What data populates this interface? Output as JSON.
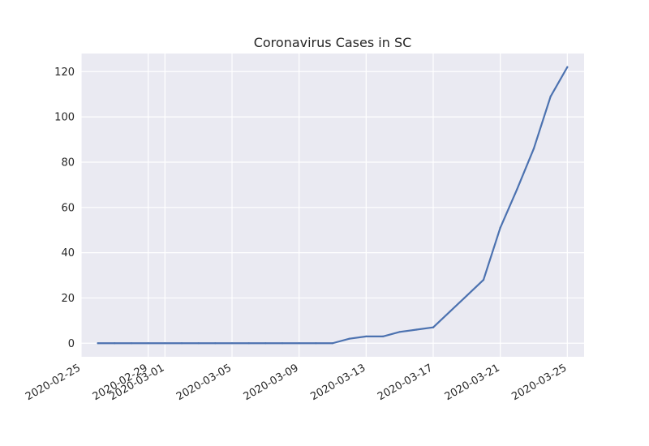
{
  "chart_data": {
    "type": "line",
    "title": "Coronavirus Cases in SC",
    "xlabel": "",
    "ylabel": "",
    "grid": true,
    "xlim": [
      "2020-02-25",
      "2020-03-26"
    ],
    "ylim": [
      -6,
      128
    ],
    "x_ticks": [
      "2020-02-25",
      "2020-02-29",
      "2020-03-01",
      "2020-03-05",
      "2020-03-09",
      "2020-03-13",
      "2020-03-17",
      "2020-03-21",
      "2020-03-25"
    ],
    "y_ticks": [
      0,
      20,
      40,
      60,
      80,
      100,
      120
    ],
    "colors": {
      "background": "#EAEAF2",
      "grid": "#FFFFFF",
      "line": "#4C72B0",
      "text": "#262626"
    },
    "series": [
      {
        "x": [
          "2020-02-26",
          "2020-02-27",
          "2020-02-28",
          "2020-02-29",
          "2020-03-01",
          "2020-03-02",
          "2020-03-03",
          "2020-03-04",
          "2020-03-05",
          "2020-03-06",
          "2020-03-07",
          "2020-03-08",
          "2020-03-09",
          "2020-03-10",
          "2020-03-11",
          "2020-03-12",
          "2020-03-13",
          "2020-03-14",
          "2020-03-15",
          "2020-03-16",
          "2020-03-17",
          "2020-03-18",
          "2020-03-19",
          "2020-03-20",
          "2020-03-21",
          "2020-03-22",
          "2020-03-23",
          "2020-03-24",
          "2020-03-25"
        ],
        "values": [
          0,
          0,
          0,
          0,
          0,
          0,
          0,
          0,
          0,
          0,
          0,
          0,
          0,
          0,
          0,
          2,
          3,
          3,
          5,
          6,
          7,
          14,
          21,
          28,
          51,
          68,
          86,
          109,
          122
        ]
      }
    ]
  }
}
